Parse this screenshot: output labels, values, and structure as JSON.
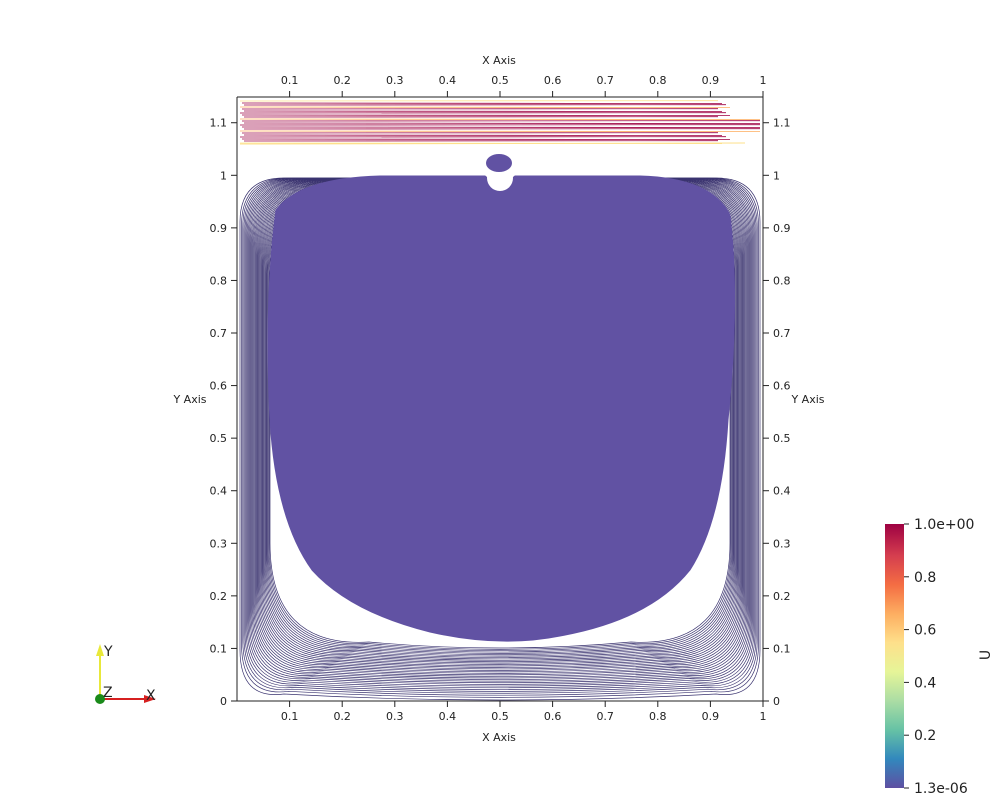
{
  "chart_data": {
    "type": "contour",
    "x_axis_title": "X Axis",
    "y_axis_title": "Y Axis",
    "x_ticks": [
      "0.1",
      "0.2",
      "0.3",
      "0.4",
      "0.5",
      "0.6",
      "0.7",
      "0.8",
      "0.9",
      "1"
    ],
    "y_ticks": [
      "0",
      "0.1",
      "0.2",
      "0.3",
      "0.4",
      "0.5",
      "0.6",
      "0.7",
      "0.8",
      "0.9",
      "1",
      "1.1"
    ],
    "xlim": [
      0,
      1
    ],
    "ylim": [
      0,
      1.15
    ],
    "colorbar": {
      "variable": "U",
      "min_label": "1.3e-06",
      "max_label": "1.0e+00",
      "tick_labels": [
        "0.2",
        "0.4",
        "0.6",
        "0.8"
      ],
      "tick_values": [
        0.2,
        0.4,
        0.6,
        0.8
      ],
      "colors": [
        "#5e4fa2",
        "#3288bd",
        "#66c2a5",
        "#abdda4",
        "#e6f598",
        "#fee08b",
        "#fdae61",
        "#f46d43",
        "#d53e4f",
        "#9e0142"
      ]
    },
    "contour_line_color": "#3b3470",
    "fill_color": "#6152a3",
    "orientation_axes": {
      "x": "X",
      "y": "Y",
      "z": "Z"
    }
  }
}
